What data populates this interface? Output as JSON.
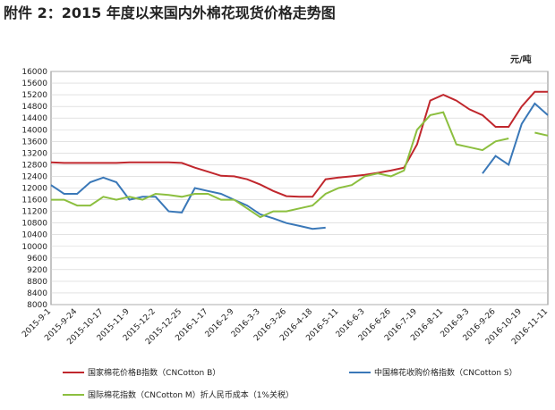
{
  "chart_data": {
    "type": "line",
    "title": "附件 2：2015 年度以来国内外棉花现货价格走势图",
    "y_unit": "元/吨",
    "categories": [
      "2015-9-1",
      null,
      "2015-9-24",
      null,
      "2015-10-17",
      null,
      "2015-11-9",
      null,
      "2015-12-2",
      null,
      "2015-12-25",
      null,
      "2016-1-17",
      null,
      "2016-2-9",
      null,
      "2016-3-3",
      null,
      "2016-3-26",
      null,
      "2016-4-18",
      null,
      "2016-5-11",
      null,
      "2016-6-3",
      null,
      "2016-6-26",
      null,
      "2016-7-19",
      null,
      "2016-8-11",
      null,
      "2016-9-3",
      null,
      "2016-9-26",
      null,
      "2016-10-19",
      null,
      "2016-11-11"
    ],
    "series": [
      {
        "name": "国家棉花价格B指数（CNCotton B）",
        "color": "#c0272d",
        "values": [
          12880,
          12860,
          12860,
          12860,
          12860,
          12860,
          12880,
          12880,
          12880,
          12880,
          12860,
          12700,
          12560,
          12420,
          12400,
          12300,
          12120,
          11900,
          11720,
          11700,
          11700,
          12300,
          12360,
          12400,
          12450,
          12520,
          12600,
          12700,
          13500,
          15000,
          15200,
          15000,
          14700,
          14500,
          14100,
          14100,
          14800,
          15300,
          15300
        ]
      },
      {
        "name": "中国棉花收购价格指数（CNCotton S）",
        "color": "#3a78b8",
        "values": [
          12100,
          11800,
          11800,
          12200,
          12360,
          12200,
          11600,
          11700,
          11700,
          11200,
          11160,
          12000,
          11900,
          11800,
          11600,
          11400,
          11100,
          10960,
          10800,
          10700,
          10600,
          10640,
          null,
          null,
          null,
          null,
          null,
          null,
          null,
          null,
          null,
          null,
          null,
          12500,
          13100,
          12800,
          14200,
          14900,
          14500
        ]
      },
      {
        "name": "国际棉花指数（CNCotton M）折人民币成本（1%关税）",
        "color": "#8cbf3f",
        "values": [
          11600,
          11600,
          11400,
          11400,
          11700,
          11600,
          11700,
          11600,
          11800,
          11760,
          11700,
          11800,
          11800,
          11600,
          11600,
          11300,
          11000,
          11200,
          11200,
          11300,
          11400,
          11800,
          12000,
          12100,
          12400,
          12500,
          12400,
          12600,
          14000,
          14500,
          14600,
          13500,
          13400,
          13300,
          13600,
          13700,
          null,
          13900,
          13800
        ]
      }
    ],
    "ylim": [
      8000,
      16000
    ],
    "yticks": [
      8000,
      8400,
      8800,
      9200,
      9600,
      10000,
      10400,
      10800,
      11200,
      11600,
      12000,
      12400,
      12800,
      13200,
      13600,
      14000,
      14400,
      14800,
      15200,
      15600,
      16000
    ],
    "grid": true
  }
}
